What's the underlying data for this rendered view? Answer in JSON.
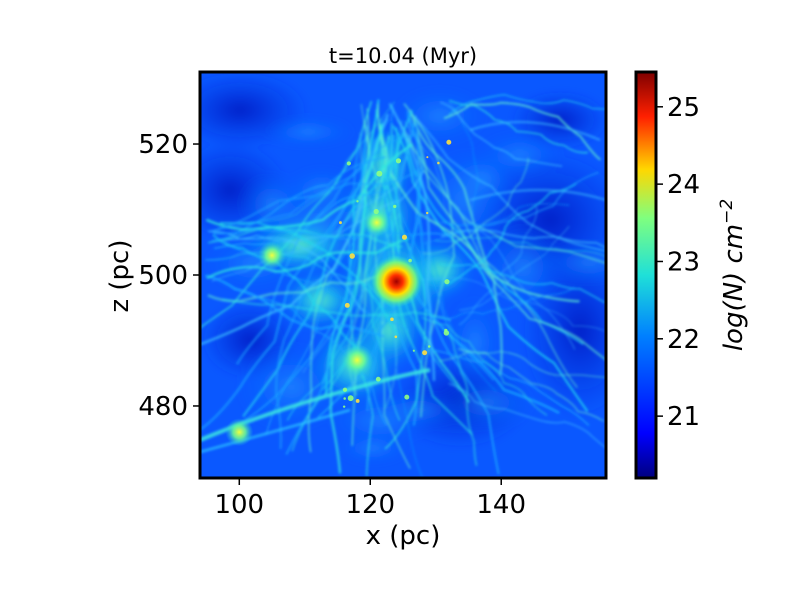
{
  "chart_data": {
    "type": "heatmap",
    "title": "t=10.04 (Myr)",
    "xlabel": "x (pc)",
    "ylabel": "z (pc)",
    "xlim": [
      94,
      156
    ],
    "ylim": [
      469,
      531
    ],
    "xticks": [
      100,
      120,
      140
    ],
    "yticks": [
      480,
      500,
      520
    ],
    "colorbar": {
      "label": "log(N) cm^-2",
      "range": [
        20.2,
        25.45
      ],
      "ticks": [
        21,
        22,
        23,
        24,
        25
      ],
      "colormap": "jet"
    },
    "features": [
      {
        "name": "central dense clump",
        "x": 124,
        "z": 499,
        "value": 25.2
      },
      {
        "name": "upper filament",
        "x": 121,
        "z": 508,
        "value": 23.0
      },
      {
        "name": "left filament",
        "x": 105,
        "z": 503,
        "value": 22.8
      },
      {
        "name": "lower clump",
        "x": 118,
        "z": 487,
        "value": 23.2
      },
      {
        "name": "lower-left streamer",
        "x": 100,
        "z": 476,
        "value": 22.2
      }
    ],
    "background_value": 20.9
  },
  "colors": {
    "jet_low": "#00007f",
    "jet_mid_low": "#0066ff",
    "jet_mid": "#1fe0d8",
    "jet_mid_high": "#ffd700",
    "jet_high": "#7f0000"
  }
}
